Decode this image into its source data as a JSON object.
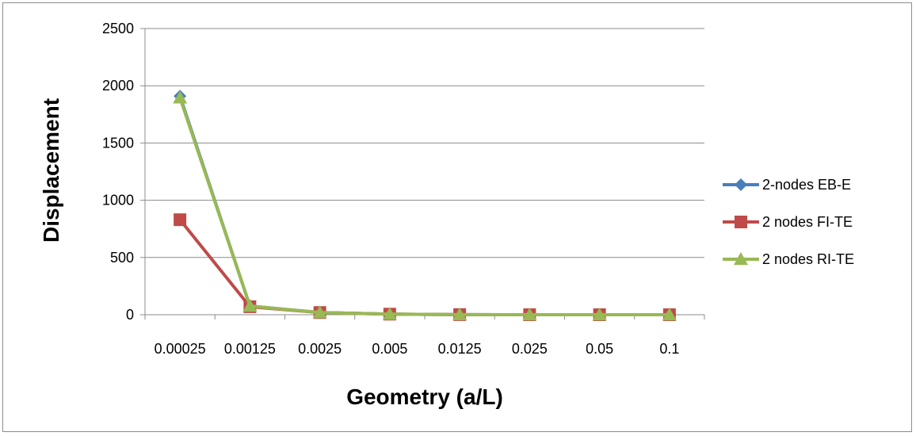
{
  "chart_data": {
    "type": "line",
    "title": "",
    "xlabel": "Geometry (a/L)",
    "ylabel": "Displacement",
    "categories": [
      "0.00025",
      "0.00125",
      "0.0025",
      "0.005",
      "0.0125",
      "0.025",
      "0.05",
      "0.1"
    ],
    "ylim": [
      0,
      2500
    ],
    "yticks": [
      0,
      500,
      1000,
      1500,
      2000,
      2500
    ],
    "grid": true,
    "legend_position": "right",
    "series": [
      {
        "name": "2-nodes EB-E",
        "color": "#4a7ebb",
        "marker": "diamond",
        "values": [
          1910,
          76,
          19,
          5,
          1,
          0,
          0,
          0
        ]
      },
      {
        "name": "2 nodes FI-TE",
        "color": "#be4b48",
        "marker": "square",
        "values": [
          830,
          70,
          19,
          5,
          1,
          0,
          0,
          0
        ]
      },
      {
        "name": "2 nodes RI-TE",
        "color": "#98b954",
        "marker": "triangle",
        "values": [
          1895,
          76,
          19,
          5,
          1,
          0,
          0,
          0
        ]
      }
    ]
  }
}
